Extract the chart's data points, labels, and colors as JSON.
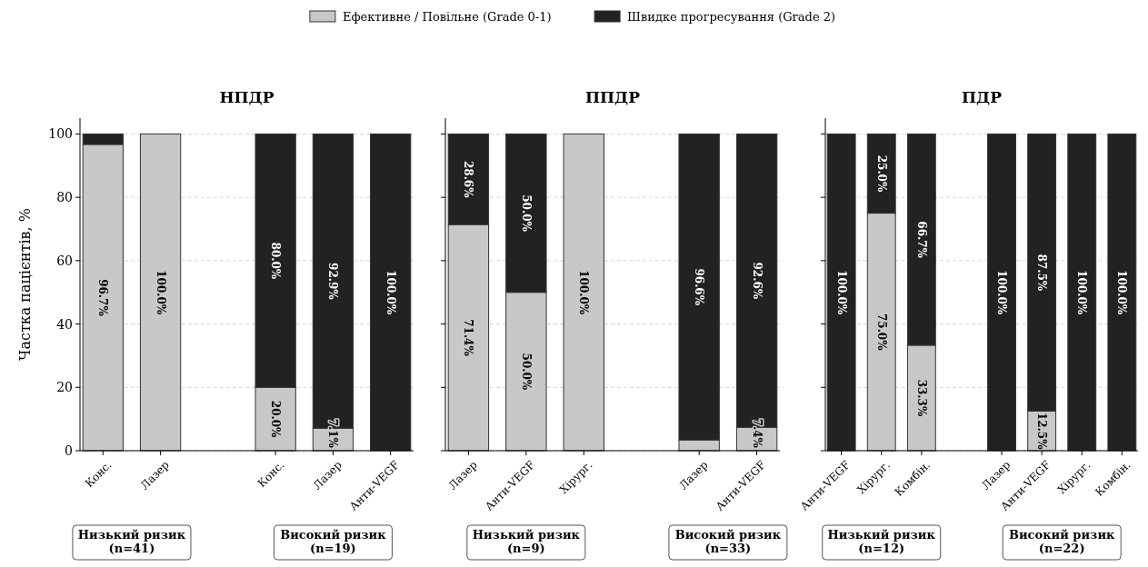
{
  "chart_data": [
    {
      "type": "bar",
      "title": "НПДР",
      "ylabel": "Частка пацієнтів, %",
      "stacked": true,
      "grid": "y",
      "legend": "top",
      "ylim": [
        0,
        105
      ],
      "yticks": [
        0,
        20,
        40,
        60,
        80,
        100
      ],
      "categories": [
        "Конс.",
        "Лазер",
        null,
        "Конс.",
        "Лазер",
        "Анти-VEGF"
      ],
      "series": [
        {
          "name": "Ефективне / Повільне (Grade 0-1)",
          "color": "#c8c8c8",
          "values": [
            96.7,
            100.0,
            null,
            20.0,
            7.1,
            0
          ],
          "value_labels": [
            "96.7%",
            "100.0%",
            null,
            "20.0%",
            "7.1%",
            null
          ]
        },
        {
          "name": "Швидке прогресування (Grade 2)",
          "color": "#222222",
          "values": [
            3.3,
            0,
            null,
            80.0,
            92.9,
            100.0
          ],
          "value_labels": [
            null,
            null,
            null,
            "80.0%",
            "92.9%",
            "100.0%"
          ]
        }
      ],
      "annotations": [
        "Низький ризик\n(n=41)",
        "Високий ризик\n(n=19)"
      ]
    },
    {
      "type": "bar",
      "title": "ППДР",
      "stacked": true,
      "grid": "y",
      "ylim": [
        0,
        105
      ],
      "yticks": [
        0,
        20,
        40,
        60,
        80,
        100
      ],
      "tick_labels": "x",
      "categories": [
        "Лазер",
        "Анти-VEGF",
        "Хірург.",
        null,
        "Лазер",
        "Анти-VEGF"
      ],
      "series": [
        {
          "color": "#c8c8c8",
          "values": [
            71.4,
            50.0,
            100.0,
            null,
            3.4,
            7.4
          ],
          "value_labels": [
            "71.4%",
            "50.0%",
            "100.0%",
            null,
            null,
            "7.4%"
          ]
        },
        {
          "color": "#222222",
          "values": [
            28.6,
            50.0,
            0,
            null,
            96.6,
            92.6
          ],
          "value_labels": [
            "28.6%",
            "50.0%",
            null,
            null,
            "96.6%",
            "92.6%"
          ]
        }
      ],
      "annotations": [
        "Низький ризик\n(n=9)",
        "Високий ризик\n(n=33)"
      ]
    },
    {
      "type": "bar",
      "title": "ПДР",
      "stacked": true,
      "grid": "y",
      "ylim": [
        0,
        105
      ],
      "yticks": [
        0,
        20,
        40,
        60,
        80,
        100
      ],
      "tick_labels": "x",
      "categories": [
        "Анти-VEGF",
        "Хірург.",
        "Комбін.",
        null,
        "Лазер",
        "Анти-VEGF",
        "Хірург.",
        "Комбін."
      ],
      "series": [
        {
          "color": "#c8c8c8",
          "values": [
            0,
            75.0,
            33.3,
            null,
            0,
            12.5,
            0,
            0
          ],
          "value_labels": [
            null,
            "75.0%",
            "33.3%",
            null,
            null,
            "12.5%",
            null,
            null
          ]
        },
        {
          "color": "#222222",
          "values": [
            100.0,
            25.0,
            66.7,
            null,
            100.0,
            87.5,
            100.0,
            100.0
          ],
          "value_labels": [
            "100.0%",
            "25.0%",
            "66.7%",
            null,
            "100.0%",
            "87.5%",
            "100.0%",
            "100.0%"
          ]
        }
      ],
      "annotations": [
        "Низький ризик\n(n=12)",
        "Високий ризик\n(n=22)"
      ]
    }
  ]
}
